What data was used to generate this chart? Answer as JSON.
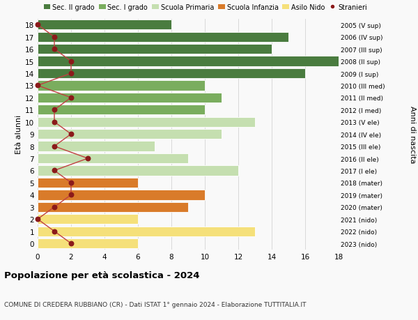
{
  "ages": [
    18,
    17,
    16,
    15,
    14,
    13,
    12,
    11,
    10,
    9,
    8,
    7,
    6,
    5,
    4,
    3,
    2,
    1,
    0
  ],
  "values": [
    8,
    15,
    14,
    19,
    16,
    10,
    11,
    10,
    13,
    11,
    7,
    9,
    12,
    6,
    10,
    9,
    6,
    13,
    6
  ],
  "categories": [
    "Sec. II grado",
    "Sec. II grado",
    "Sec. II grado",
    "Sec. II grado",
    "Sec. II grado",
    "Sec. I grado",
    "Sec. I grado",
    "Sec. I grado",
    "Scuola Primaria",
    "Scuola Primaria",
    "Scuola Primaria",
    "Scuola Primaria",
    "Scuola Primaria",
    "Scuola Infanzia",
    "Scuola Infanzia",
    "Scuola Infanzia",
    "Asilo Nido",
    "Asilo Nido",
    "Asilo Nido"
  ],
  "stranieri": [
    0,
    1,
    1,
    2,
    2,
    0,
    2,
    1,
    1,
    2,
    1,
    3,
    1,
    2,
    2,
    1,
    0,
    1,
    2
  ],
  "right_labels": [
    "2005 (V sup)",
    "2006 (IV sup)",
    "2007 (III sup)",
    "2008 (II sup)",
    "2009 (I sup)",
    "2010 (III med)",
    "2011 (II med)",
    "2012 (I med)",
    "2013 (V ele)",
    "2014 (IV ele)",
    "2015 (III ele)",
    "2016 (II ele)",
    "2017 (I ele)",
    "2018 (mater)",
    "2019 (mater)",
    "2020 (mater)",
    "2021 (nido)",
    "2022 (nido)",
    "2023 (nido)"
  ],
  "colors": {
    "Sec. II grado": "#4a7c3f",
    "Sec. I grado": "#7aad5e",
    "Scuola Primaria": "#c5dfb0",
    "Scuola Infanzia": "#d97b2a",
    "Asilo Nido": "#f5e07a"
  },
  "stranieri_color": "#8b1a1a",
  "stranieri_line_color": "#c04040",
  "title": "Popolazione per età scolastica - 2024",
  "subtitle": "COMUNE DI CREDERA RUBBIANO (CR) - Dati ISTAT 1° gennaio 2024 - Elaborazione TUTTITALIA.IT",
  "ylabel_left": "Età alunni",
  "ylabel_right": "Anni di nascita",
  "xlim": [
    0,
    18
  ],
  "ylim": [
    -0.5,
    18.5
  ],
  "bg_color": "#f9f9f9"
}
